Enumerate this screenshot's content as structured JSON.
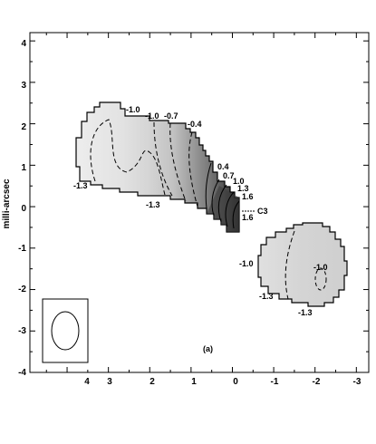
{
  "chart_data": {
    "type": "heatmap",
    "title": "",
    "xlabel": "",
    "ylabel": "milli-arcsec",
    "xlim": [
      4.9,
      -3.3
    ],
    "ylim": [
      -4,
      4.2
    ],
    "x_ticks": [
      "4",
      "3",
      "2",
      "1",
      "0",
      "-1",
      "-2",
      "-3"
    ],
    "y_ticks": [
      "4",
      "3",
      "2",
      "1",
      "0",
      "-1",
      "-2",
      "-3",
      "-4"
    ],
    "panel_label": "(a)",
    "component_label": "C3",
    "contour_labels": [
      "-1.0",
      "-1.0",
      "-0.7",
      "-0.4",
      "0.4",
      "0.7",
      "1.0",
      "1.3",
      "1.6",
      "1.6",
      "-1.3",
      "-1.3",
      "-1.0",
      "-1.0",
      "-1.3",
      "-1.3"
    ],
    "beam": {
      "major_mas": 1.4,
      "minor_mas": 1.1
    }
  }
}
